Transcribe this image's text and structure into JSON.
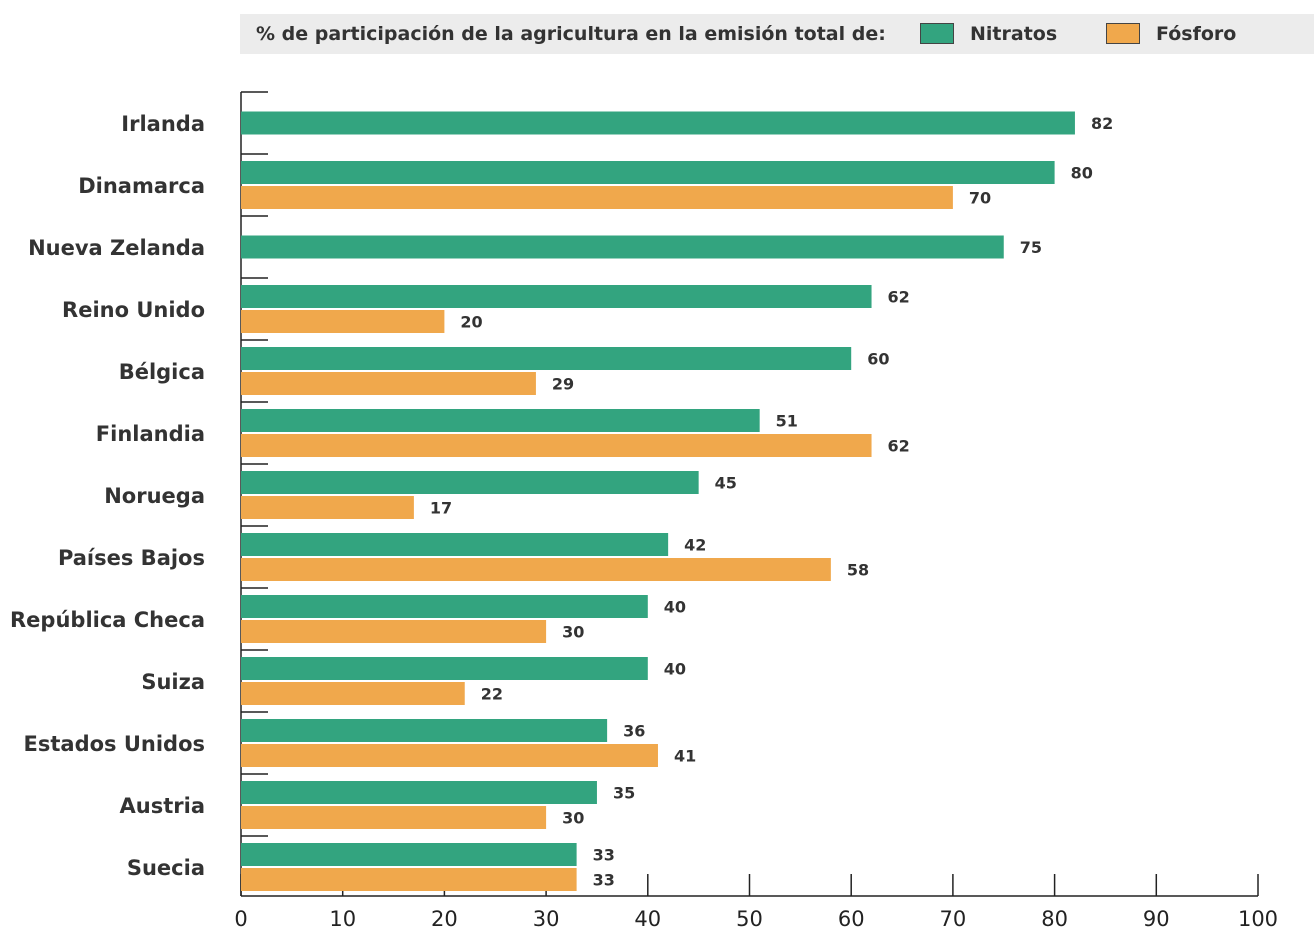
{
  "chart_data": {
    "type": "bar",
    "orientation": "horizontal",
    "legend_title": "% de participación de la agricultura en la emisión total de:",
    "categories": [
      "Irlanda",
      "Dinamarca",
      "Nueva Zelanda",
      "Reino Unido",
      "Bélgica",
      "Finlandia",
      "Noruega",
      "Países Bajos",
      "República Checa",
      "Suiza",
      "Estados Unidos",
      "Austria",
      "Suecia"
    ],
    "series": [
      {
        "name": "Nitratos",
        "color": "#33a47f",
        "values": [
          82,
          80,
          75,
          62,
          60,
          51,
          45,
          42,
          40,
          40,
          36,
          35,
          33
        ]
      },
      {
        "name": "Fósforo",
        "color": "#f0a84c",
        "values": [
          null,
          70,
          null,
          20,
          29,
          62,
          17,
          58,
          30,
          22,
          41,
          30,
          33
        ]
      }
    ],
    "xlim": [
      0,
      100
    ],
    "xticks": [
      0,
      10,
      20,
      30,
      40,
      50,
      60,
      70,
      80,
      90,
      100
    ],
    "grid": false,
    "legend_position": "top"
  }
}
